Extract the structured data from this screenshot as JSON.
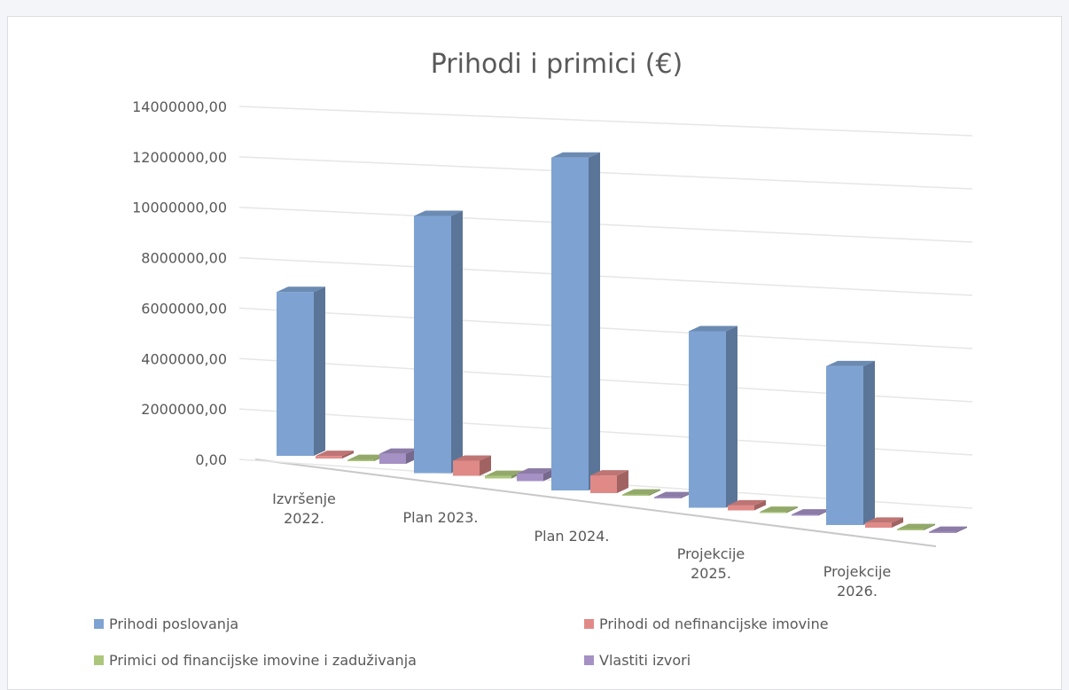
{
  "chart_data": {
    "type": "bar3d",
    "title": "Prihodi i primici (€)",
    "categories": [
      "Izvršenje 2022.",
      "Plan 2023.",
      "Plan 2024.",
      "Projekcije 2025.",
      "Projekcije 2026."
    ],
    "series": [
      {
        "name": "Prihodi poslovanja",
        "color": "#7ea3d3",
        "values": [
          6500000,
          10200000,
          13200000,
          7000000,
          6300000
        ]
      },
      {
        "name": "Prihodi od nefinancijske imovine",
        "color": "#e08a88",
        "values": [
          100000,
          600000,
          700000,
          200000,
          200000
        ]
      },
      {
        "name": "Primici od financijske imovine i zaduživanja",
        "color": "#acc77c",
        "values": [
          50000,
          100000,
          50000,
          50000,
          50000
        ]
      },
      {
        "name": "Vlastiti izvori",
        "color": "#a591c4",
        "values": [
          400000,
          300000,
          50000,
          50000,
          50000
        ]
      }
    ],
    "ylim": [
      0,
      14000000
    ],
    "yticks": [
      {
        "value": 0,
        "label": "0,00"
      },
      {
        "value": 2000000,
        "label": "2000000,00"
      },
      {
        "value": 4000000,
        "label": "4000000,00"
      },
      {
        "value": 6000000,
        "label": "6000000,00"
      },
      {
        "value": 8000000,
        "label": "8000000,00"
      },
      {
        "value": 10000000,
        "label": "10000000,00"
      },
      {
        "value": 12000000,
        "label": "12000000,00"
      },
      {
        "value": 14000000,
        "label": "14000000,00"
      }
    ],
    "grid": true,
    "legend": "bottom"
  }
}
